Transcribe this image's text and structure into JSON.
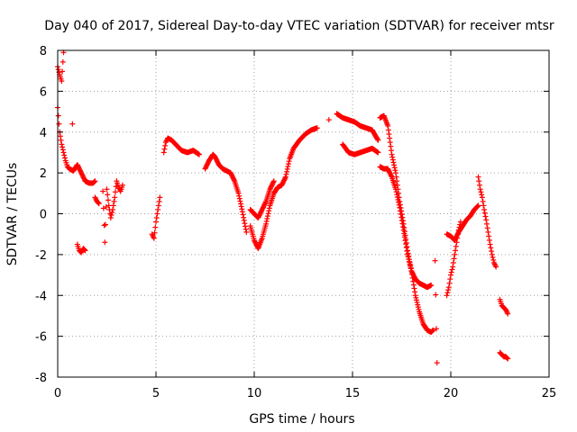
{
  "chart_data": {
    "type": "scatter",
    "title": "Day 040 of 2017, Sidereal Day-to-day VTEC variation (SDTVAR) for receiver mtsr",
    "xlabel": "GPS time / hours",
    "ylabel": "SDTVAR / TECUs",
    "xlim": [
      0,
      25
    ],
    "ylim": [
      -8,
      8
    ],
    "xticks": [
      0,
      5,
      10,
      15,
      20,
      25
    ],
    "yticks": [
      -8,
      -6,
      -4,
      -2,
      0,
      2,
      4,
      6,
      8
    ],
    "xtick_labels": [
      "0",
      "5",
      "10",
      "15",
      "20",
      "25"
    ],
    "ytick_labels": [
      "-8",
      "-6",
      "-4",
      "-2",
      "0",
      "2",
      "4",
      "6",
      "8"
    ],
    "grid": true,
    "marker": "+",
    "marker_color": "#ff0000",
    "series": [
      {
        "name": "mtsr",
        "segments": [
          {
            "x": [
              0.0,
              0.1,
              0.2,
              0.3
            ],
            "y": [
              7.2,
              6.8,
              6.5,
              7.9
            ]
          },
          {
            "x": [
              0.0,
              0.1,
              0.2,
              0.3,
              0.4,
              0.5,
              0.6,
              0.8,
              1.0,
              1.2,
              1.4,
              1.6,
              1.8,
              1.9
            ],
            "y": [
              5.2,
              4.0,
              3.4,
              3.0,
              2.6,
              2.3,
              2.2,
              2.1,
              2.4,
              2.0,
              1.6,
              1.5,
              1.5,
              1.6
            ]
          },
          {
            "x": [
              0.75
            ],
            "y": [
              4.4
            ]
          },
          {
            "x": [
              1.0,
              1.1,
              1.2,
              1.3,
              1.4
            ],
            "y": [
              -1.5,
              -1.8,
              -1.9,
              -1.7,
              -1.8
            ]
          },
          {
            "x": [
              1.9,
              2.0,
              2.1
            ],
            "y": [
              0.8,
              0.6,
              0.5
            ]
          },
          {
            "x": [
              2.3,
              2.4,
              2.5,
              2.6,
              2.7,
              2.8,
              2.9,
              3.0,
              3.1,
              3.2,
              3.3
            ],
            "y": [
              1.1,
              -1.4,
              1.2,
              0.4,
              -0.2,
              0.2,
              0.8,
              1.6,
              1.3,
              1.1,
              1.4
            ]
          },
          {
            "x": [
              4.8,
              4.9,
              5.0,
              5.1,
              5.2
            ],
            "y": [
              -1.0,
              -1.2,
              -0.4,
              0.2,
              0.8
            ]
          },
          {
            "x": [
              5.4,
              5.5,
              5.6,
              5.8,
              6.0,
              6.3,
              6.6,
              6.9,
              7.2
            ],
            "y": [
              3.0,
              3.5,
              3.7,
              3.6,
              3.4,
              3.1,
              3.0,
              3.1,
              2.9
            ]
          },
          {
            "x": [
              7.5,
              7.7,
              7.9,
              8.0,
              8.2,
              8.4,
              8.6,
              8.8,
              9.0,
              9.2,
              9.4,
              9.6
            ],
            "y": [
              2.2,
              2.6,
              2.9,
              2.8,
              2.4,
              2.2,
              2.1,
              2.0,
              1.6,
              1.0,
              0.1,
              -0.9
            ]
          },
          {
            "x": [
              9.8,
              10.0,
              10.2,
              10.4,
              10.6,
              10.8,
              11.0,
              11.2,
              11.4,
              11.6,
              11.8,
              12.0,
              12.3,
              12.6,
              12.9,
              13.2
            ],
            "y": [
              -0.6,
              -1.3,
              -1.7,
              -1.2,
              -0.5,
              0.4,
              1.0,
              1.3,
              1.4,
              1.8,
              2.7,
              3.2,
              3.6,
              3.9,
              4.1,
              4.2
            ]
          },
          {
            "x": [
              9.8,
              10.0,
              10.2,
              10.4,
              10.6,
              10.8,
              11.0
            ],
            "y": [
              0.2,
              0.0,
              -0.2,
              0.2,
              0.6,
              1.2,
              1.6
            ]
          },
          {
            "x": [
              13.8
            ],
            "y": [
              4.6
            ]
          },
          {
            "x": [
              14.2,
              14.5,
              14.8,
              15.1,
              15.4,
              15.7,
              16.0,
              16.3
            ],
            "y": [
              4.9,
              4.7,
              4.6,
              4.5,
              4.3,
              4.2,
              4.1,
              3.6
            ]
          },
          {
            "x": [
              14.5,
              14.8,
              15.1,
              15.4,
              15.7,
              16.0,
              16.3
            ],
            "y": [
              3.4,
              3.0,
              2.9,
              3.0,
              3.1,
              3.2,
              3.0
            ]
          },
          {
            "x": [
              16.4,
              16.6,
              16.8,
              17.0,
              17.2,
              17.4,
              17.6,
              17.8,
              18.0,
              18.2,
              18.4,
              18.6,
              18.8,
              19.0,
              19.1
            ],
            "y": [
              4.7,
              4.8,
              4.3,
              2.9,
              2.0,
              0.6,
              -0.5,
              -1.8,
              -2.8,
              -4.0,
              -4.8,
              -5.4,
              -5.7,
              -5.8,
              -5.7
            ]
          },
          {
            "x": [
              16.4,
              16.6,
              16.8,
              17.0,
              17.2,
              17.4,
              17.6,
              17.8,
              18.0,
              18.2,
              18.4,
              18.6,
              18.8,
              19.0
            ],
            "y": [
              2.3,
              2.2,
              2.2,
              1.8,
              1.2,
              0.3,
              -0.8,
              -2.0,
              -2.8,
              -3.2,
              -3.4,
              -3.5,
              -3.6,
              -3.5
            ]
          },
          {
            "x": [
              19.2,
              19.3
            ],
            "y": [
              -2.3,
              -7.3
            ]
          },
          {
            "x": [
              19.8,
              19.9,
              20.0,
              20.1,
              20.2,
              20.3,
              20.4,
              20.5
            ],
            "y": [
              -4.0,
              -3.6,
              -3.0,
              -2.6,
              -2.0,
              -1.4,
              -0.8,
              -0.4
            ]
          },
          {
            "x": [
              19.8,
              20.0,
              20.2,
              20.4,
              20.6,
              20.8,
              21.0,
              21.2,
              21.4
            ],
            "y": [
              -1.0,
              -1.1,
              -1.3,
              -0.9,
              -0.6,
              -0.3,
              -0.1,
              0.2,
              0.4
            ]
          },
          {
            "x": [
              21.4,
              21.5,
              21.6,
              21.7,
              21.8,
              21.9,
              22.0,
              22.1,
              22.2,
              22.3
            ],
            "y": [
              1.8,
              1.2,
              0.8,
              0.2,
              -0.3,
              -0.9,
              -1.5,
              -2.0,
              -2.4,
              -2.6
            ]
          },
          {
            "x": [
              22.5,
              22.6,
              22.7,
              22.8,
              22.9
            ],
            "y": [
              -4.2,
              -4.5,
              -4.6,
              -4.7,
              -4.9
            ]
          },
          {
            "x": [
              22.5,
              22.6,
              22.7,
              22.8,
              22.9
            ],
            "y": [
              -6.8,
              -6.9,
              -7.0,
              -7.0,
              -7.1
            ]
          }
        ]
      }
    ]
  }
}
